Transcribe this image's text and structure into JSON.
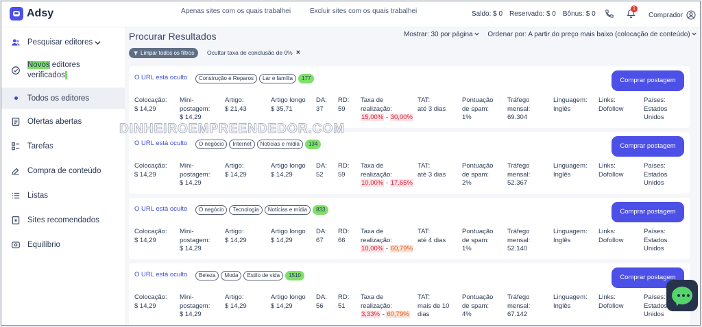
{
  "app": {
    "logo_text": "Adsy"
  },
  "topbar": {
    "links": [
      "Apenas sites com os quais trabalhei",
      "Excluir sites com os quais trabalhei"
    ],
    "balance": "Saldo: $ 0",
    "reserved": "Reservado: $ 0",
    "bonus": "Bônus: $ 0",
    "notifications_count": "1",
    "user_role": "Comprador"
  },
  "sidebar": {
    "items": [
      {
        "label": "Pesquisar editores",
        "icon": "users-icon"
      },
      {
        "label_a": "Novos",
        "label_b": " editores verificados",
        "icon": "check-circle-icon"
      },
      {
        "label": "Todos os editores",
        "icon": "dot-icon"
      },
      {
        "label": "Ofertas abertas",
        "icon": "document-icon"
      },
      {
        "label": "Tarefas",
        "icon": "tasks-icon"
      },
      {
        "label": "Compra de conteúdo",
        "icon": "edit-icon"
      },
      {
        "label": "Listas",
        "icon": "list-icon"
      },
      {
        "label": "Sites recomendados",
        "icon": "star-doc-icon"
      },
      {
        "label": "Equilíbrio",
        "icon": "wallet-icon"
      }
    ]
  },
  "main": {
    "title": "Procurar Resultados",
    "show_label": "Mostrar:",
    "show_value": "30 por página",
    "sort_label": "Ordenar por:",
    "sort_value": "A partir do preço mais baixo (colocação de conteúdo)",
    "clear_filters": "Limpar todos os filtros",
    "active_filter": "Ocultar taxa de conclusão de 0%"
  },
  "labels": {
    "url_hidden": "O URL está oculto",
    "buy": "Comprar postagem",
    "placement": "Colocação:",
    "mini_a": "Mini-",
    "mini_b": "postagem:",
    "article": "Artigo:",
    "long_article": "Artigo longo",
    "da": "DA:",
    "rd": "RD:",
    "rate_a": "Taxa de",
    "rate_b": "realização:",
    "tat": "TAT:",
    "spam_a": "Pontuação",
    "spam_b": "de spam:",
    "traffic_a": "Tráfego",
    "traffic_b": "mensal:",
    "language": "Linguagem:",
    "links": "Links:",
    "countries": "Países:"
  },
  "listings": [
    {
      "tags": [
        "Construção e Reparos",
        "Lar e família"
      ],
      "count": "177",
      "placement": "$ 14,29",
      "mini": "$ 14,29",
      "article": "$ 21,43",
      "long_article": "$ 35,71",
      "da": "37",
      "rd": "59",
      "rate_low": "15,00%",
      "rate_high": "30,00%",
      "rate_high_color": "red",
      "tat_a": "até 3 dias",
      "tat_b": "",
      "spam": "1%",
      "traffic": "69.304",
      "language": "Inglês",
      "links": "Dofollow",
      "countries_a": "Estados",
      "countries_b": "Unidos"
    },
    {
      "tags": [
        "O negócio",
        "Internet",
        "Notícias e mídia"
      ],
      "count": "134",
      "placement": "$ 14,29",
      "mini": "$ 14,29",
      "article": "$ 14,29",
      "long_article": "$ 14,29",
      "da": "52",
      "rd": "59",
      "rate_low": "10,00%",
      "rate_high": "17,65%",
      "rate_high_color": "red",
      "tat_a": "até 3 dias",
      "tat_b": "",
      "spam": "2%",
      "traffic": "52.367",
      "language": "Inglês",
      "links": "Dofollow",
      "countries_a": "Estados",
      "countries_b": "Unidos"
    },
    {
      "tags": [
        "O negócio",
        "Tecnologia",
        "Notícias e mídia"
      ],
      "count": "833",
      "placement": "$ 14,29",
      "mini": "$ 14,29",
      "article": "$ 14,29",
      "long_article": "$ 14,29",
      "da": "67",
      "rd": "66",
      "rate_low": "10,00%",
      "rate_high": "60,79%",
      "rate_high_color": "orange",
      "tat_a": "até 4 dias",
      "tat_b": "",
      "spam": "1%",
      "traffic": "52.140",
      "language": "Inglês",
      "links": "Dofollow",
      "countries_a": "Estados",
      "countries_b": "Unidos"
    },
    {
      "tags": [
        "Beleza",
        "Moda",
        "Estilo de vida"
      ],
      "count": "1510",
      "placement": "$ 14,29",
      "mini": "$ 14,29",
      "article": "$ 14,29",
      "long_article": "$ 14,29",
      "da": "56",
      "rd": "51",
      "rate_low": "3,33%",
      "rate_high": "60,79%",
      "rate_high_color": "orange",
      "tat_a": "mais de 10",
      "tat_b": "dias",
      "spam": "4%",
      "traffic": "67.142",
      "language": "Inglês",
      "links": "Dofollow",
      "countries_a": "Estados",
      "countries_b": "Unidos"
    }
  ],
  "watermark": "DINHEIROEMPREENDEDOR.COM",
  "colors": {
    "accent": "#4c50e6",
    "highlight": "#7ee06a",
    "chat": "#55d46b"
  }
}
